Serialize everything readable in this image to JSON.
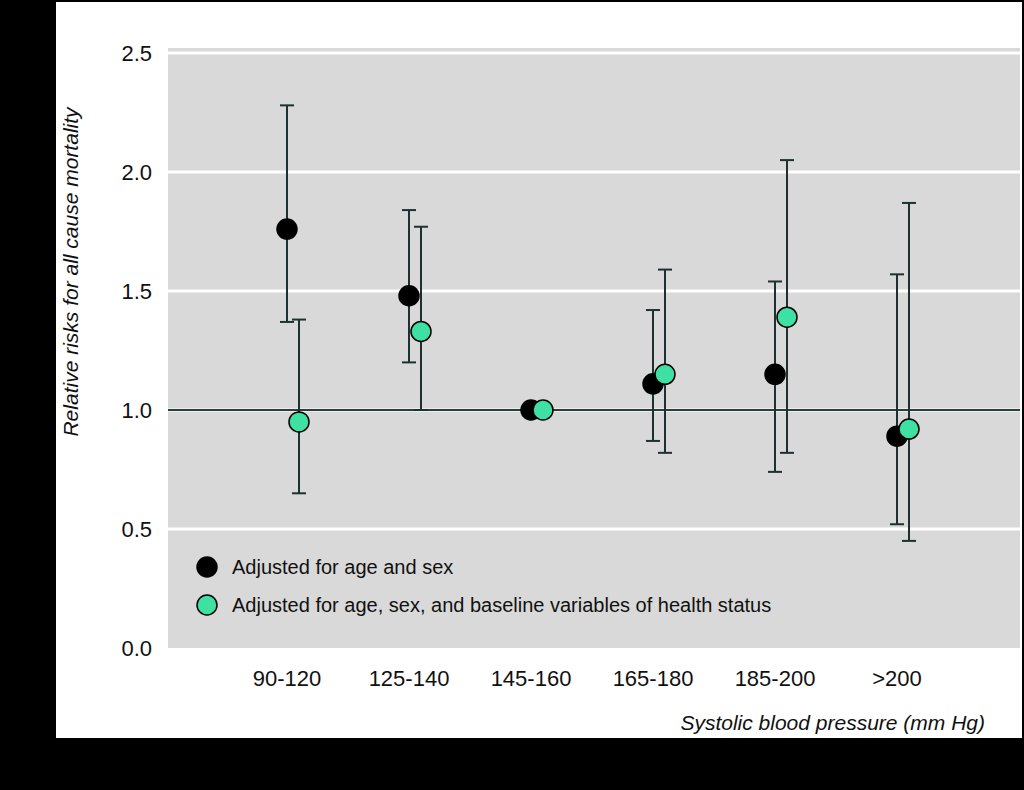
{
  "chart_data": {
    "type": "errorbar",
    "x_label": "Systolic blood pressure (mm Hg)",
    "y_label": "Relative risks for all cause mortality",
    "categories": [
      "90-120",
      "125-140",
      "145-160",
      "165-180",
      "185-200",
      ">200"
    ],
    "series": [
      {
        "name": "Adjusted for age and sex",
        "color": "#000000",
        "marker": "circle",
        "values": [
          1.76,
          1.48,
          1.0,
          1.11,
          1.15,
          0.89
        ],
        "lower": [
          1.37,
          1.2,
          null,
          0.87,
          0.74,
          0.52
        ],
        "upper": [
          2.28,
          1.84,
          null,
          1.42,
          1.54,
          1.57
        ]
      },
      {
        "name": "Adjusted for age, sex, and baseline variables of health status",
        "color": "#3fe0a4",
        "marker": "circle",
        "values": [
          0.95,
          1.33,
          1.0,
          1.15,
          1.39,
          0.92
        ],
        "lower": [
          0.65,
          1.0,
          null,
          0.82,
          0.82,
          0.45
        ],
        "upper": [
          1.38,
          1.77,
          null,
          1.59,
          2.05,
          1.87
        ]
      }
    ],
    "reference_line": 1,
    "ylim": [
      0,
      2.5
    ],
    "yticks": [
      {
        "value": 0,
        "label": "0.0"
      },
      {
        "value": 0.5,
        "label": "0.5"
      },
      {
        "value": 1,
        "label": "1.0"
      },
      {
        "value": 1.5,
        "label": "1.5"
      },
      {
        "value": 2,
        "label": "2.0"
      },
      {
        "value": 2.5,
        "label": "2.5"
      }
    ],
    "grid": true,
    "legend": "lower left"
  }
}
